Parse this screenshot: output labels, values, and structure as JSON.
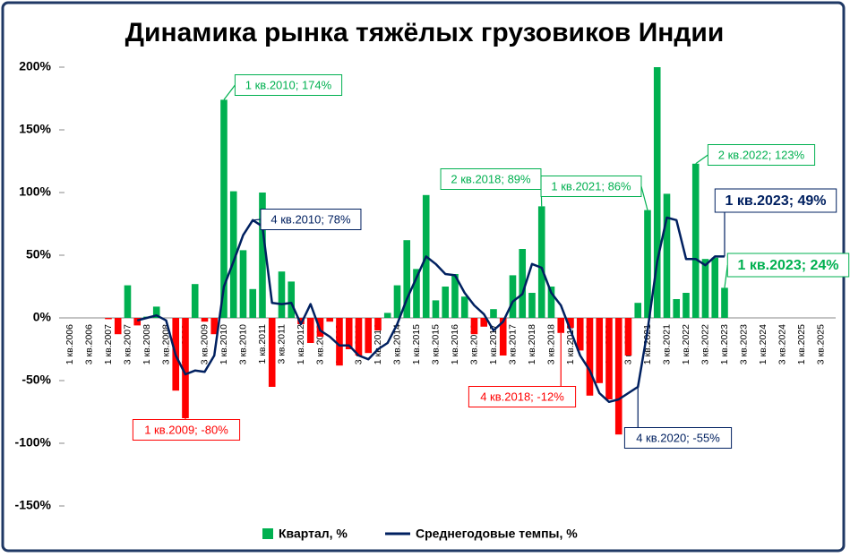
{
  "chart_data": {
    "type": "bar",
    "title": "Динамика рынка тяжёлых грузовиков Индии",
    "categories": [
      "1 кв.2006",
      null,
      "3 кв.2006",
      null,
      "1 кв.2007",
      null,
      "3 кв.2007",
      null,
      "1 кв.2008",
      null,
      "3 кв.2008",
      null,
      "1 кв.2009",
      null,
      "3 кв.2009",
      null,
      "1 кв.2010",
      null,
      "3 кв.2010",
      null,
      "1 кв.2011",
      null,
      "3 кв.2011",
      null,
      "1 кв.2012",
      null,
      "3 кв.2012",
      null,
      "1 кв.2013",
      null,
      "3 кв.2013",
      null,
      "1 кв.2014",
      null,
      "3 кв.2014",
      null,
      "1 кв.2015",
      null,
      "3 кв.2015",
      null,
      "1 кв.2016",
      null,
      "3 кв.2016",
      null,
      "1 кв.2017",
      null,
      "3 кв.2017",
      null,
      "1 кв.2018",
      null,
      "3 кв.2018",
      null,
      "1 кв.2019",
      null,
      "3 кв.2019",
      null,
      "1 кв.2020",
      null,
      "3 кв.2020",
      null,
      "1 кв.2021",
      null,
      "3 кв.2021",
      null,
      "1 кв.2022",
      null,
      "3 кв.2022",
      null,
      "1 кв.2023",
      null,
      "3 кв.2023",
      null,
      "1 кв.2024",
      null,
      "3 кв.2024",
      null,
      "1 кв.2025",
      null,
      "3 кв.2025",
      null
    ],
    "series": [
      {
        "name": "Квартал, %",
        "type": "bar",
        "color": "#00b050",
        "negative_color": "#ff0000",
        "values": [
          null,
          null,
          null,
          null,
          -1,
          -13,
          26,
          -6,
          1,
          9,
          0,
          -58,
          -80,
          27,
          -3,
          -13,
          174,
          101,
          54,
          23,
          100,
          -55,
          37,
          29,
          -5,
          -20,
          -15,
          -3,
          -38,
          -25,
          -30,
          -28,
          -10,
          4,
          26,
          62,
          39,
          98,
          14,
          25,
          35,
          17,
          -13,
          -7,
          7,
          -30,
          34,
          55,
          20,
          89,
          25,
          -12,
          -8,
          -26,
          -62,
          -52,
          -65,
          -93,
          -30,
          12,
          86,
          200,
          99,
          15,
          20,
          123,
          47,
          48,
          24,
          null,
          null,
          null,
          null,
          null,
          null,
          null,
          null,
          null,
          null,
          null
        ]
      },
      {
        "name": "Среднегодовые темпы, %",
        "type": "line",
        "color": "#002060",
        "values": [
          null,
          null,
          null,
          null,
          null,
          null,
          null,
          -2,
          0,
          2,
          -2,
          -30,
          -45,
          -42,
          -43,
          -30,
          25,
          45,
          66,
          78,
          73,
          12,
          11,
          12,
          -5,
          11,
          -10,
          -15,
          -22,
          -22,
          -30,
          -33,
          -25,
          -20,
          -5,
          15,
          32,
          49,
          43,
          35,
          34,
          20,
          10,
          3,
          -10,
          -3,
          13,
          19,
          43,
          40,
          20,
          10,
          -10,
          -30,
          -42,
          -60,
          -67,
          -65,
          -60,
          -55,
          -10,
          45,
          80,
          78,
          47,
          47,
          42,
          49,
          49,
          null,
          null,
          null,
          null,
          null,
          null,
          null,
          null,
          null,
          null,
          null
        ]
      }
    ],
    "ylim": [
      -150,
      200
    ],
    "yticks": [
      {
        "value": -150,
        "label": "-150%"
      },
      {
        "value": -100,
        "label": "-100%"
      },
      {
        "value": -50,
        "label": "-50%"
      },
      {
        "value": 0,
        "label": "0%"
      },
      {
        "value": 50,
        "label": "50%"
      },
      {
        "value": 100,
        "label": "100%"
      },
      {
        "value": 150,
        "label": "150%"
      },
      {
        "value": 200,
        "label": "200%"
      }
    ],
    "legend": "bottom",
    "annotations": [
      {
        "text": "1 кв.2010; 174%",
        "series": 0,
        "index": 16,
        "color": "#00b050"
      },
      {
        "text": "1 кв.2009; -80%",
        "series": 0,
        "index": 12,
        "color": "#ff0000"
      },
      {
        "text": "4 кв.2010; 78%",
        "series": 1,
        "index": 19,
        "color": "#002060"
      },
      {
        "text": "2 кв.2018; 89%",
        "series": 0,
        "index": 49,
        "color": "#00b050"
      },
      {
        "text": "4 кв.2018; -12%",
        "series": 0,
        "index": 51,
        "color": "#ff0000"
      },
      {
        "text": "1 кв.2021; 86%",
        "series": 0,
        "index": 60,
        "color": "#00b050"
      },
      {
        "text": "4 кв.2020; -55%",
        "series": 1,
        "index": 59,
        "color": "#002060"
      },
      {
        "text": "2 кв.2022; 123%",
        "series": 0,
        "index": 65,
        "color": "#00b050"
      },
      {
        "text": "1 кв.2023; 49%",
        "series": 1,
        "index": 68,
        "color": "#002060"
      },
      {
        "text": "1 кв.2023; 24%",
        "series": 0,
        "index": 68,
        "color": "#00b050"
      }
    ]
  }
}
